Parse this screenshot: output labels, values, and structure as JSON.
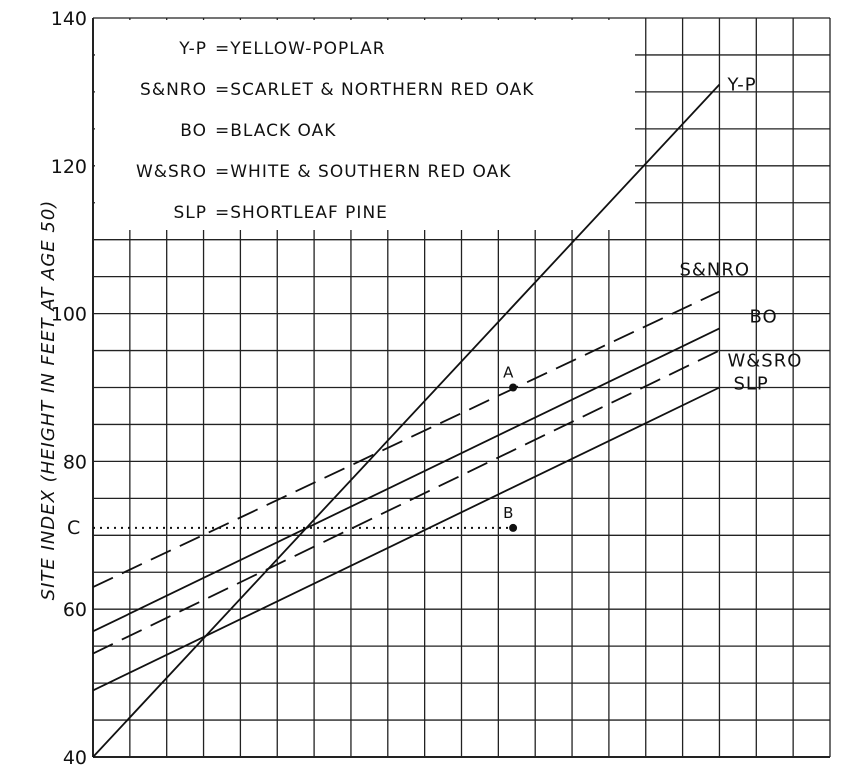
{
  "chart_data": {
    "type": "line",
    "ylabel": "SITE INDEX (HEIGHT IN FEET AT AGE 50)",
    "xlabel": "",
    "ylim": [
      40,
      140
    ],
    "y_ticks": [
      "40",
      "60",
      "80",
      "100",
      "120",
      "140"
    ],
    "x": [
      0,
      1
    ],
    "legend": [
      {
        "abbr": "Y-P",
        "name": "YELLOW-POPLAR"
      },
      {
        "abbr": "S&NRO",
        "name": "SCARLET & NORTHERN RED OAK"
      },
      {
        "abbr": "BO",
        "name": "BLACK OAK"
      },
      {
        "abbr": "W&SRO",
        "name": "WHITE & SOUTHERN RED OAK"
      },
      {
        "abbr": "SLP",
        "name": "SHORTLEAF PINE"
      }
    ],
    "series": [
      {
        "name": "Y-P",
        "values": [
          40,
          131
        ],
        "style": "solid"
      },
      {
        "name": "S&NRO",
        "values": [
          63,
          103
        ],
        "style": "dashed"
      },
      {
        "name": "BO",
        "values": [
          57,
          98
        ],
        "style": "solid"
      },
      {
        "name": "W&SRO",
        "values": [
          54,
          95
        ],
        "style": "dashed"
      },
      {
        "name": "SLP",
        "values": [
          49,
          90
        ],
        "style": "solid"
      }
    ],
    "points": [
      {
        "label": "A",
        "x": 0.57,
        "y": 90
      },
      {
        "label": "B",
        "x": 0.57,
        "y": 71
      }
    ],
    "reference_lines": [
      {
        "label": "C",
        "y": 71,
        "style": "dotted"
      }
    ],
    "grid": true,
    "legend_position": "top-left",
    "line_color": "#111111"
  }
}
